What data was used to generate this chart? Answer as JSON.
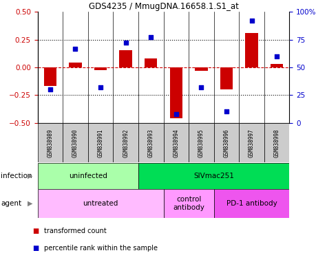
{
  "title": "GDS4235 / MmugDNA.16658.1.S1_at",
  "samples": [
    "GSM838989",
    "GSM838990",
    "GSM838991",
    "GSM838992",
    "GSM838993",
    "GSM838994",
    "GSM838995",
    "GSM838996",
    "GSM838997",
    "GSM838998"
  ],
  "transformed_count": [
    -0.17,
    0.04,
    -0.025,
    0.155,
    0.08,
    -0.46,
    -0.03,
    -0.2,
    0.31,
    0.03
  ],
  "percentile_rank": [
    30,
    67,
    32,
    72,
    77,
    8,
    32,
    10,
    92,
    60
  ],
  "ylim_left": [
    -0.5,
    0.5
  ],
  "ylim_right": [
    0,
    100
  ],
  "yticks_left": [
    -0.5,
    -0.25,
    0.0,
    0.25,
    0.5
  ],
  "yticks_right": [
    0,
    25,
    50,
    75,
    100
  ],
  "hlines": [
    0.25,
    -0.25
  ],
  "bar_color": "#cc0000",
  "dot_color": "#0000cc",
  "infection_groups": [
    {
      "label": "uninfected",
      "start": 0,
      "end": 4,
      "color": "#aaffaa"
    },
    {
      "label": "SIVmac251",
      "start": 4,
      "end": 10,
      "color": "#00dd55"
    }
  ],
  "agent_groups": [
    {
      "label": "untreated",
      "start": 0,
      "end": 5,
      "color": "#ffbbff"
    },
    {
      "label": "control\nantibody",
      "start": 5,
      "end": 7,
      "color": "#ff99ff"
    },
    {
      "label": "PD-1 antibody",
      "start": 7,
      "end": 10,
      "color": "#ee55ee"
    }
  ],
  "legend_items": [
    {
      "label": "transformed count",
      "color": "#cc0000"
    },
    {
      "label": "percentile rank within the sample",
      "color": "#0000cc"
    }
  ],
  "label_infection": "infection",
  "label_agent": "agent",
  "tick_color_left": "#cc0000",
  "tick_color_right": "#0000cc",
  "sample_bg": "#cccccc"
}
